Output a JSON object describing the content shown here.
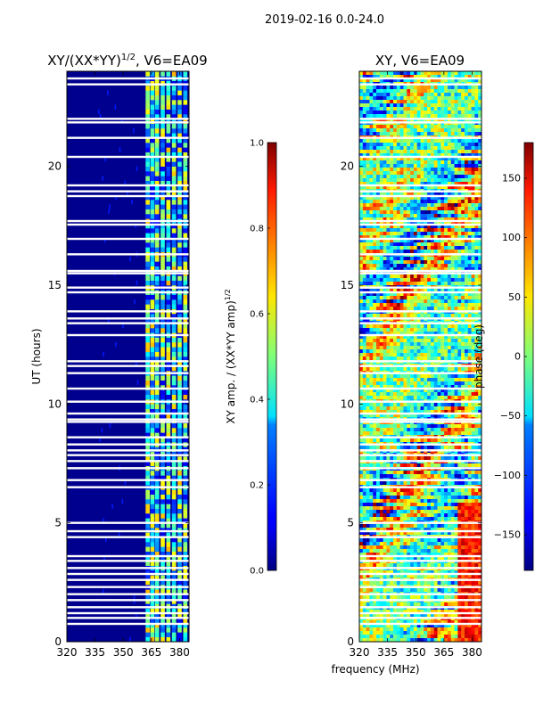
{
  "figure_title": "2019-02-16 0.0-24.0",
  "shared_xlabel": "frequency (MHz)",
  "chart_data": [
    {
      "type": "heatmap",
      "title_main": "XY/(XX*YY)",
      "title_sup": "1/2",
      "title_rest": ", V6=EA09",
      "ylabel": "UT (hours)",
      "xlim": [
        320,
        385
      ],
      "ylim": [
        0,
        24
      ],
      "xticks": [
        "320",
        "335",
        "350",
        "365",
        "380"
      ],
      "xtick_values": [
        320,
        335,
        350,
        365,
        380
      ],
      "yticks": [
        "0",
        "5",
        "10",
        "15",
        "20"
      ],
      "ytick_values": [
        0,
        5,
        10,
        15,
        20
      ],
      "colorbar": {
        "label_main": "XY amp. / (XX*YY amp)",
        "label_sup": "1/2",
        "range": [
          0.0,
          1.0
        ],
        "ticks": [
          "0.0",
          "0.2",
          "0.4",
          "0.6",
          "0.8",
          "1.0"
        ],
        "tick_values": [
          0.0,
          0.2,
          0.4,
          0.6,
          0.8,
          1.0
        ],
        "colormap": "jet"
      }
    },
    {
      "type": "heatmap",
      "title_main": "XY, V6=EA09",
      "xlim": [
        320,
        385
      ],
      "ylim": [
        0,
        24
      ],
      "xticks": [
        "320",
        "335",
        "350",
        "365",
        "380"
      ],
      "xtick_values": [
        320,
        335,
        350,
        365,
        380
      ],
      "yticks": [
        "0",
        "5",
        "10",
        "15",
        "20"
      ],
      "ytick_values": [
        0,
        5,
        10,
        15,
        20
      ],
      "colorbar": {
        "label_main": "phase (deg)",
        "range": [
          -180,
          180
        ],
        "ticks": [
          "150",
          "100",
          "50",
          "0",
          "−50",
          "−100",
          "−150"
        ],
        "tick_values": [
          150,
          100,
          50,
          0,
          -50,
          -100,
          -150
        ],
        "colormap": "jet"
      }
    }
  ],
  "flagged_ut_hours": [
    23.7,
    23.45,
    22.0,
    21.85,
    21.2,
    20.4,
    19.2,
    18.95,
    18.75,
    17.7,
    17.55,
    16.95,
    16.3,
    15.6,
    15.5,
    14.9,
    14.7,
    13.9,
    13.6,
    13.4,
    12.9,
    11.8,
    11.6,
    11.3,
    10.65,
    10.1,
    9.6,
    9.35,
    9.25,
    8.6,
    8.3,
    8.05,
    7.85,
    7.6,
    7.3,
    6.8,
    6.5,
    5.0,
    4.65,
    4.4,
    3.6,
    3.4,
    3.1,
    2.85,
    2.6,
    2.3,
    2.0,
    1.75,
    1.45,
    1.2,
    1.0,
    0.75
  ]
}
